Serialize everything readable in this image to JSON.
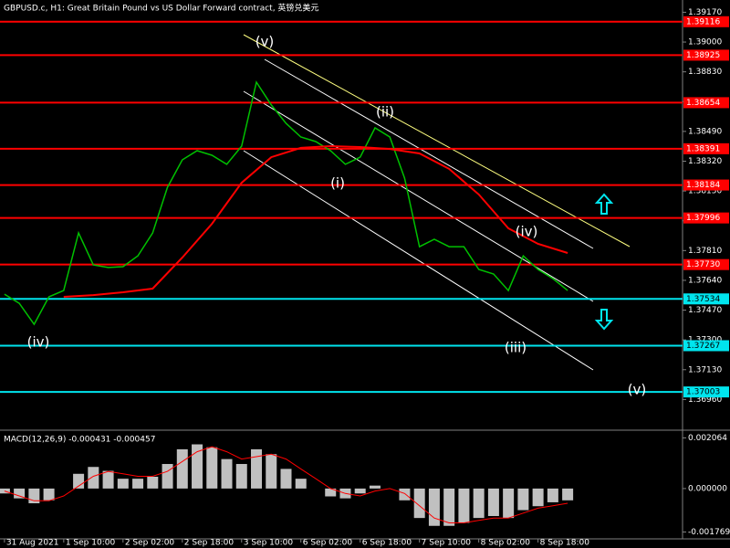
{
  "chart_data": [
    {
      "type": "line",
      "title": "GBPUSD.c, H1:  Great Britain Pound vs US Dollar Forward contract, 英镑兑美元",
      "xlim": [
        -1.2,
        183
      ],
      "xticks": [
        {
          "value": 0,
          "label": "31 Aug 2021"
        },
        {
          "value": 16,
          "label": "1 Sep 10:00"
        },
        {
          "value": 32,
          "label": "2 Sep 02:00"
        },
        {
          "value": 48,
          "label": "2 Sep 18:00"
        },
        {
          "value": 64,
          "label": "3 Sep 10:00"
        },
        {
          "value": 80,
          "label": "6 Sep 02:00"
        },
        {
          "value": 96,
          "label": "6 Sep 18:00"
        },
        {
          "value": 112,
          "label": "7 Sep 10:00"
        },
        {
          "value": 128,
          "label": "8 Sep 02:00"
        },
        {
          "value": 144,
          "label": "8 Sep 18:00"
        }
      ],
      "ylim": [
        1.3679,
        1.3924
      ],
      "yticks": [
        {
          "value": 1.3917,
          "label": "1.39170"
        },
        {
          "value": 1.39,
          "label": "1.39000"
        },
        {
          "value": 1.3883,
          "label": "1.38830"
        },
        {
          "value": 1.3866,
          "label": "1.38660"
        },
        {
          "value": 1.3849,
          "label": "1.38490"
        },
        {
          "value": 1.3832,
          "label": "1.38320"
        },
        {
          "value": 1.3815,
          "label": "1.38150"
        },
        {
          "value": 1.3798,
          "label": "1.37980"
        },
        {
          "value": 1.3781,
          "label": "1.37810"
        },
        {
          "value": 1.3764,
          "label": "1.37640"
        },
        {
          "value": 1.3747,
          "label": "1.37470"
        },
        {
          "value": 1.373,
          "label": "1.37300"
        },
        {
          "value": 1.3713,
          "label": "1.37130"
        },
        {
          "value": 1.3696,
          "label": "1.36960"
        }
      ],
      "series": [
        {
          "color": "#00c000",
          "x": [
            0,
            4,
            8,
            12,
            16,
            20,
            24,
            28,
            32,
            36,
            40,
            44,
            48,
            52,
            56,
            60,
            64,
            68,
            72,
            76,
            80,
            84,
            88,
            92,
            96,
            100,
            104,
            108,
            112,
            116,
            120,
            124,
            128,
            132,
            136,
            140,
            144,
            148,
            152
          ],
          "values": [
            1.37561,
            1.37509,
            1.37389,
            1.37546,
            1.37582,
            1.37911,
            1.37728,
            1.37713,
            1.37718,
            1.3778,
            1.37911,
            1.38171,
            1.38328,
            1.3838,
            1.38354,
            1.38302,
            1.38406,
            1.38771,
            1.38641,
            1.38536,
            1.38458,
            1.38432,
            1.3838,
            1.38302,
            1.38343,
            1.3851,
            1.38458,
            1.38223,
            1.37832,
            1.37874,
            1.37832,
            1.37832,
            1.37702,
            1.37676,
            1.37582,
            1.3778,
            1.37702,
            1.3765,
            1.37582
          ]
        },
        {
          "color": "#ff0000",
          "x": [
            16,
            24,
            32,
            40,
            48,
            56,
            64,
            72,
            80,
            88,
            96,
            104,
            112,
            120,
            128,
            136,
            144,
            152
          ],
          "values": [
            1.37546,
            1.37556,
            1.37572,
            1.37593,
            1.3777,
            1.37963,
            1.38197,
            1.38343,
            1.38396,
            1.38406,
            1.38401,
            1.3839,
            1.38364,
            1.38276,
            1.3813,
            1.37937,
            1.37848,
            1.37796
          ]
        }
      ],
      "levels": [
        {
          "value": 1.39116,
          "color": "#ff0000"
        },
        {
          "value": 1.38925,
          "color": "#ff0000"
        },
        {
          "value": 1.38654,
          "color": "#ff0000"
        },
        {
          "value": 1.38391,
          "color": "#ff0000"
        },
        {
          "value": 1.38184,
          "color": "#ff0000"
        },
        {
          "value": 1.37996,
          "color": "#ff0000"
        },
        {
          "value": 1.3773,
          "label": "1.37730",
          "color": "#ff0000"
        },
        {
          "value": 1.37534,
          "color": "#00e5ee"
        },
        {
          "value": 1.37267,
          "color": "#00e5ee"
        },
        {
          "value": 1.37003,
          "color": "#00e5ee"
        }
      ],
      "annotations": [
        "(v)",
        "(ii)",
        "(i)",
        "(iv)",
        "(iii)",
        "(iv)",
        "(v)"
      ]
    },
    {
      "type": "bar",
      "title": "MACD(12,26,9) -0.000431 -0.000457",
      "xlim": [
        -1.2,
        183
      ],
      "ylim": [
        -0.00205,
        0.00234
      ],
      "yticks": [
        0.002064,
        {
          "value": 0,
          "label": "0.000000"
        },
        -0.001769
      ],
      "x": [
        0,
        4,
        8,
        12,
        16,
        20,
        24,
        28,
        32,
        36,
        40,
        44,
        48,
        52,
        56,
        60,
        64,
        68,
        72,
        76,
        80,
        84,
        88,
        92,
        96,
        100,
        104,
        108,
        112,
        116,
        120,
        124,
        128,
        132,
        136,
        140,
        144,
        148,
        152
      ],
      "values": [
        -0.0002,
        -0.0004,
        -0.0006,
        -0.00048,
        0,
        0.0006,
        0.00088,
        0.00072,
        0.0004,
        0.0004,
        0.00048,
        0.001,
        0.0016,
        0.0018,
        0.00168,
        0.0012,
        0.001,
        0.0016,
        0.0014,
        0.0008,
        0.0004,
        0,
        -0.00032,
        -0.0004,
        -0.0002,
        0.00012,
        0,
        -0.00048,
        -0.0012,
        -0.00152,
        -0.00152,
        -0.0014,
        -0.0012,
        -0.00112,
        -0.0012,
        -0.00088,
        -0.00072,
        -0.00056,
        -0.00048
      ],
      "color": "#c0c0c0",
      "series": [
        {
          "color": "#ff0000",
          "values": [
            -0.0001,
            -0.0003,
            -0.0005,
            -0.0005,
            -0.0003,
            0.0001,
            0.0005,
            0.0007,
            0.0006,
            0.0005,
            0.0005,
            0.0007,
            0.0011,
            0.0015,
            0.0017,
            0.0015,
            0.0012,
            0.0013,
            0.0014,
            0.0012,
            0.0008,
            0.0004,
            0,
            -0.0002,
            -0.0003,
            -0.0001,
            0,
            -0.0002,
            -0.0007,
            -0.0012,
            -0.0014,
            -0.0014,
            -0.0013,
            -0.0012,
            -0.0012,
            -0.001,
            -0.0008,
            -0.0007,
            -0.0006
          ]
        }
      ]
    }
  ]
}
